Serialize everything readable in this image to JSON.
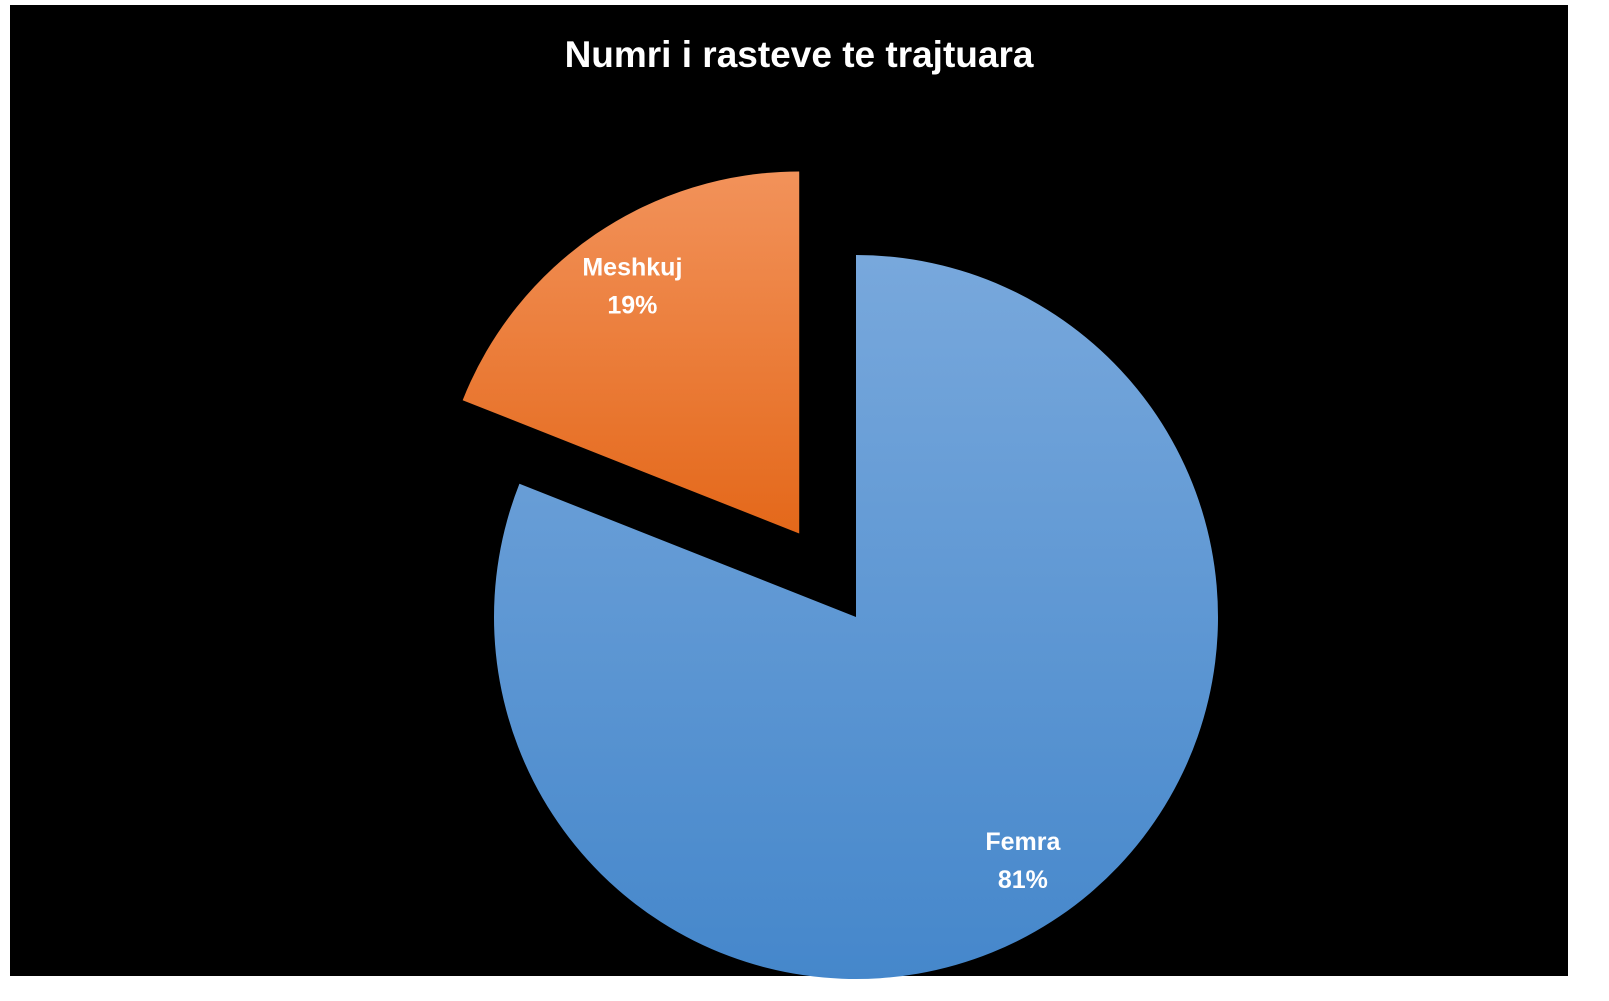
{
  "chart_data": {
    "type": "pie",
    "title": "Numri i rasteve te trajtuara",
    "categories": [
      "Femra",
      "Meshkuj"
    ],
    "values": [
      81,
      19
    ],
    "value_labels": [
      "81%",
      "19%"
    ],
    "colors": [
      [
        "#78a8dc",
        "#4587cb"
      ],
      [
        "#f2925a",
        "#e4681a"
      ]
    ],
    "explode": [
      false,
      true
    ]
  }
}
